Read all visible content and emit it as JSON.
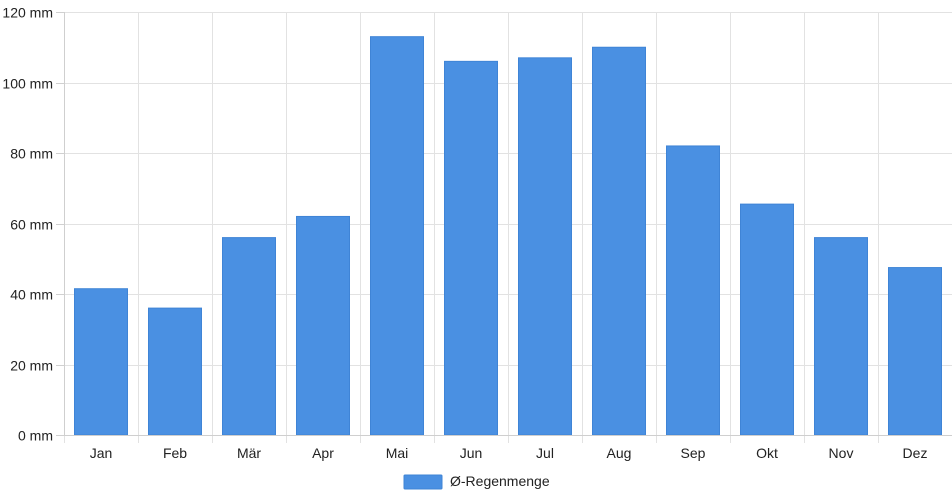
{
  "chart_data": {
    "type": "bar",
    "categories": [
      "Jan",
      "Feb",
      "Mär",
      "Apr",
      "Mai",
      "Jun",
      "Jul",
      "Aug",
      "Sep",
      "Okt",
      "Nov",
      "Dez"
    ],
    "series": [
      {
        "name": "Ø-Regenmenge",
        "color": "#4a90e2",
        "values": [
          41.5,
          36,
          56,
          62,
          113,
          106,
          107,
          110,
          82,
          65.5,
          56,
          47.5
        ]
      }
    ],
    "ylim": [
      0,
      120
    ],
    "yticks": [
      0,
      20,
      40,
      60,
      80,
      100,
      120
    ],
    "y_unit": "mm",
    "grid": true,
    "legend_position": "bottom-center",
    "title": "",
    "xlabel": "",
    "ylabel": ""
  }
}
